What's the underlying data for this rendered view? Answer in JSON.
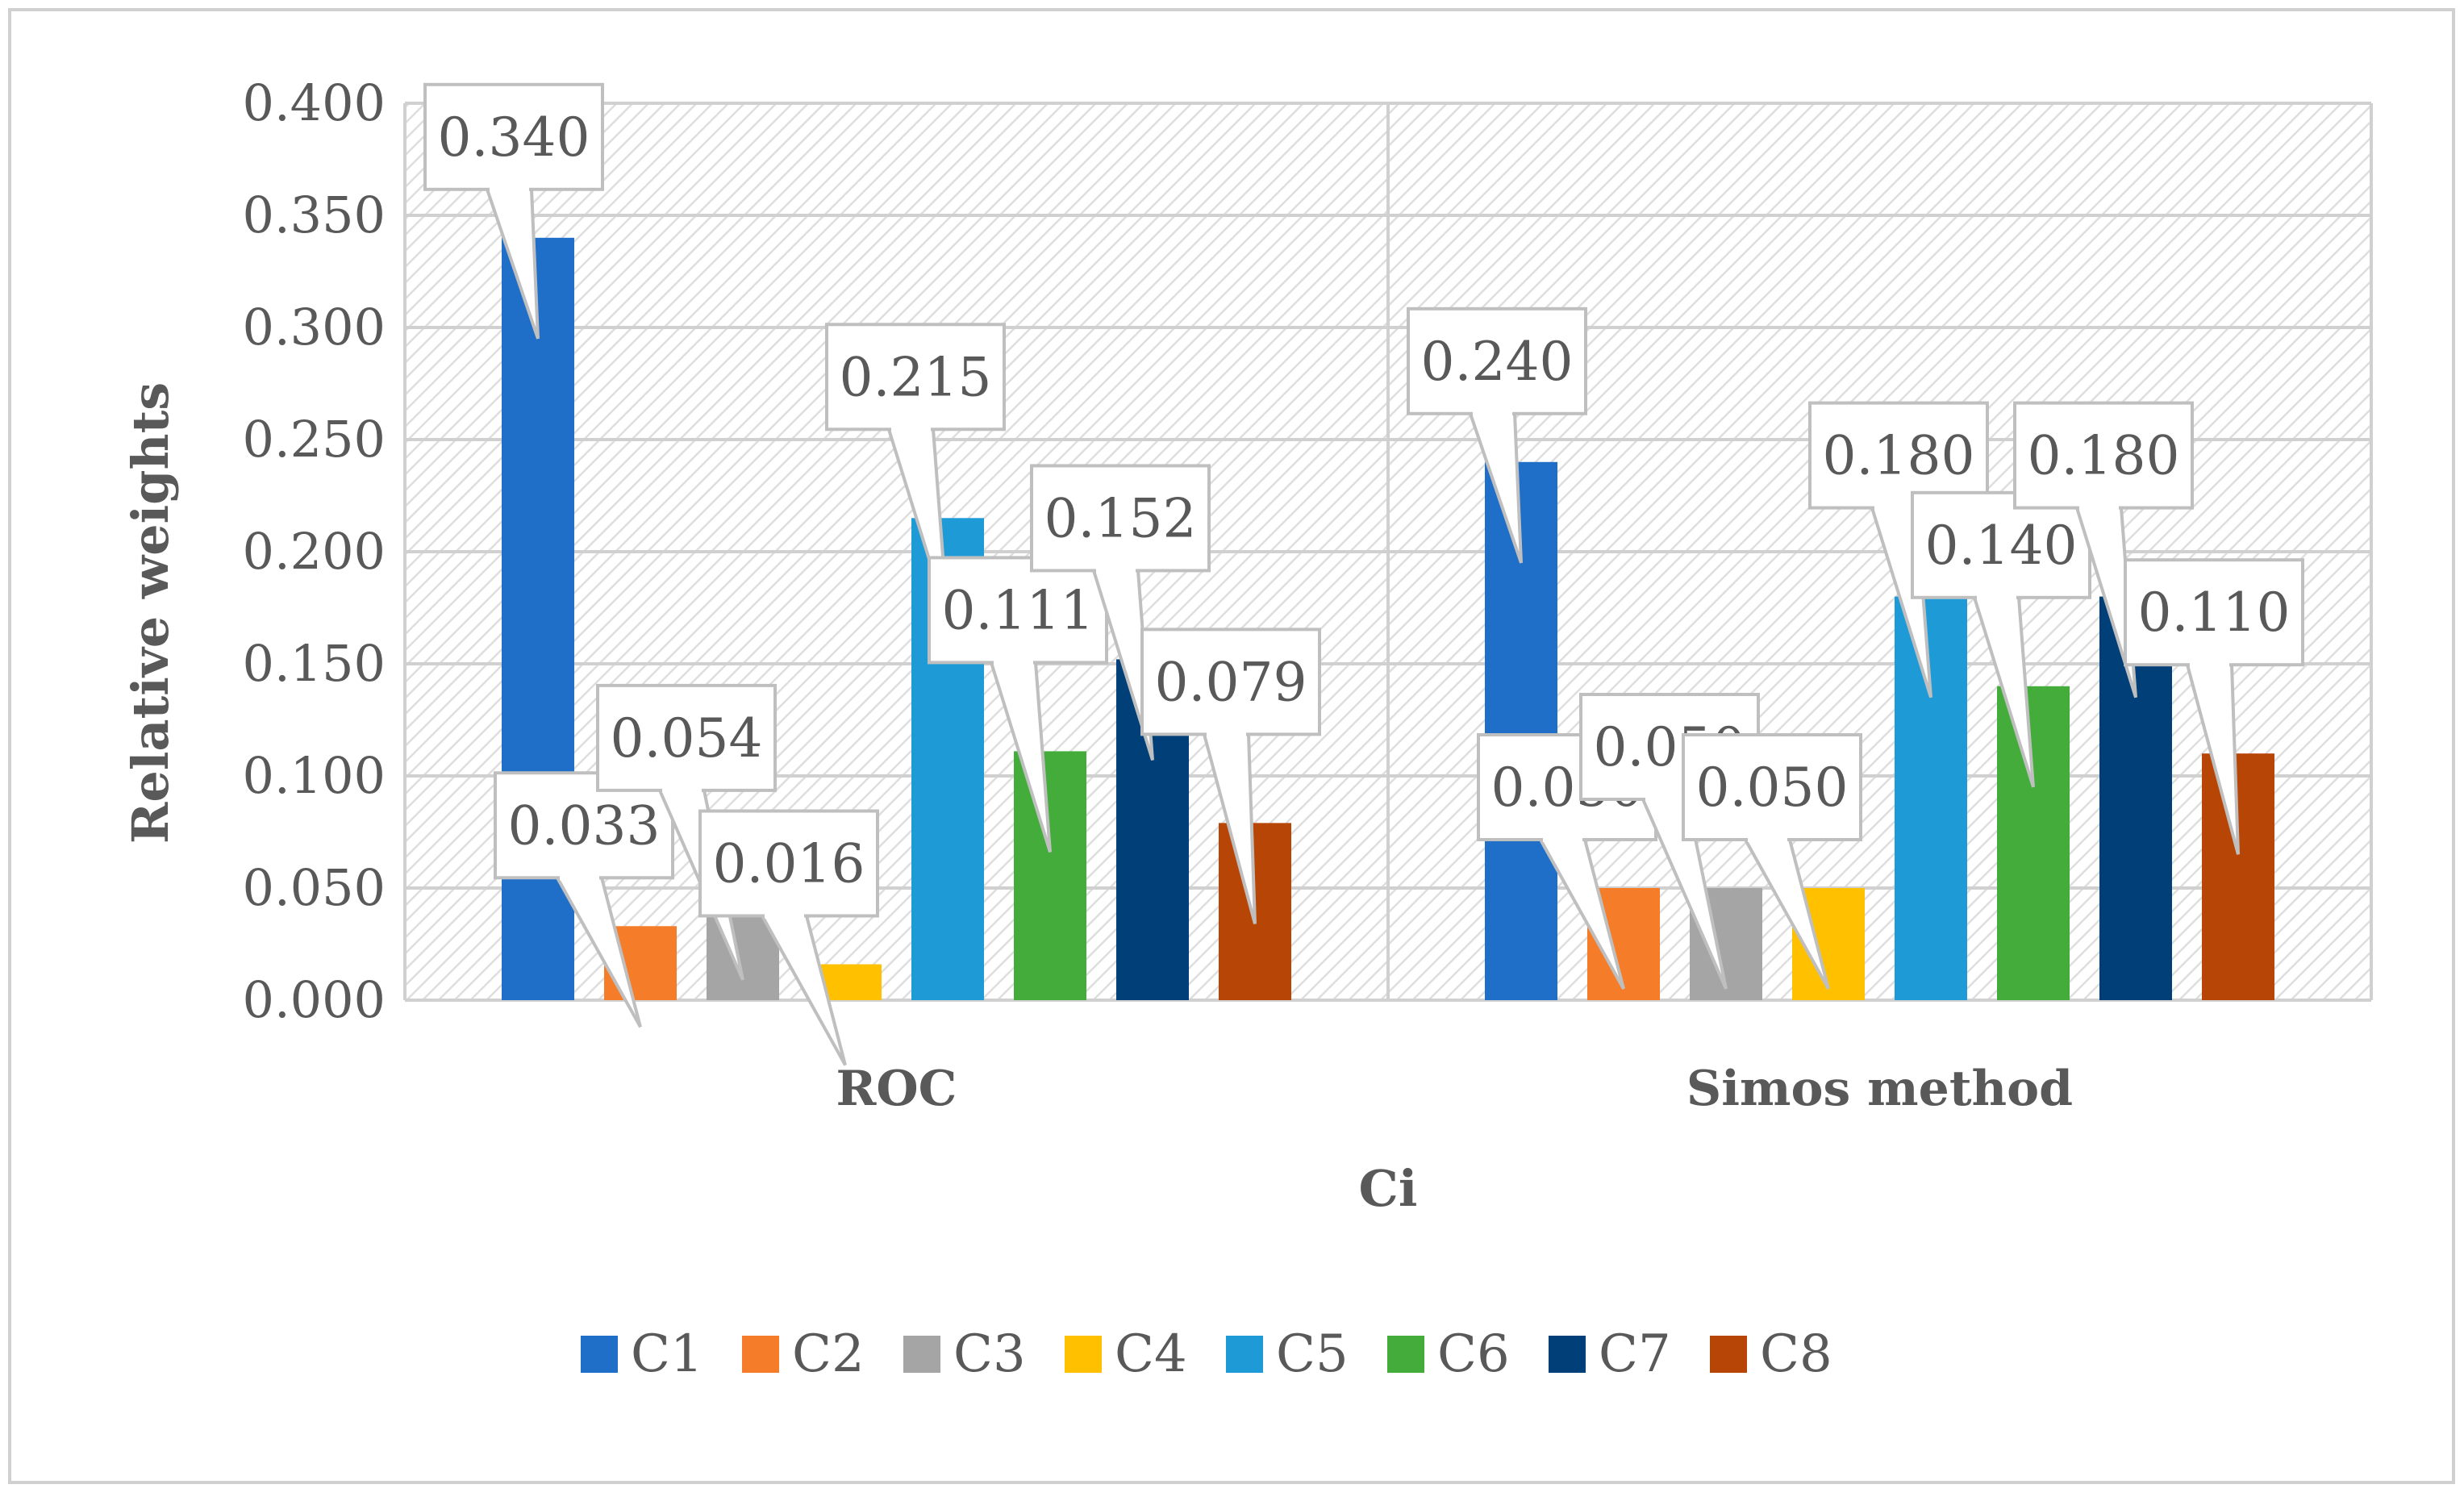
{
  "chart_data": {
    "type": "bar",
    "title": "",
    "xlabel": "Ci",
    "ylabel": "Relative weights",
    "categories": [
      "ROC",
      "Simos method"
    ],
    "series": [
      {
        "name": "C1",
        "color": "#1F6FC8",
        "values": [
          0.34,
          0.24
        ]
      },
      {
        "name": "C2",
        "color": "#F57C29",
        "values": [
          0.033,
          0.05
        ]
      },
      {
        "name": "C3",
        "color": "#A5A5A5",
        "values": [
          0.054,
          0.05
        ]
      },
      {
        "name": "C4",
        "color": "#FFC000",
        "values": [
          0.016,
          0.05
        ]
      },
      {
        "name": "C5",
        "color": "#1E9BD7",
        "values": [
          0.215,
          0.18
        ]
      },
      {
        "name": "C6",
        "color": "#43AC3B",
        "values": [
          0.111,
          0.14
        ]
      },
      {
        "name": "C7",
        "color": "#003F78",
        "values": [
          0.152,
          0.18
        ]
      },
      {
        "name": "C8",
        "color": "#B74606",
        "values": [
          0.079,
          0.11
        ]
      }
    ],
    "data_labels": [
      [
        "0.340",
        "0.240"
      ],
      [
        "0.033",
        "0.050"
      ],
      [
        "0.054",
        "0.050"
      ],
      [
        "0.016",
        "0.050"
      ],
      [
        "0.215",
        "0.180"
      ],
      [
        "0.111",
        "0.140"
      ],
      [
        "0.152",
        "0.180"
      ],
      [
        "0.079",
        "0.110"
      ]
    ],
    "yticks": [
      "0.000",
      "0.050",
      "0.100",
      "0.150",
      "0.200",
      "0.250",
      "0.300",
      "0.350",
      "0.400"
    ],
    "ylim": [
      0,
      0.4
    ],
    "grid": true,
    "legend": "bottom"
  }
}
